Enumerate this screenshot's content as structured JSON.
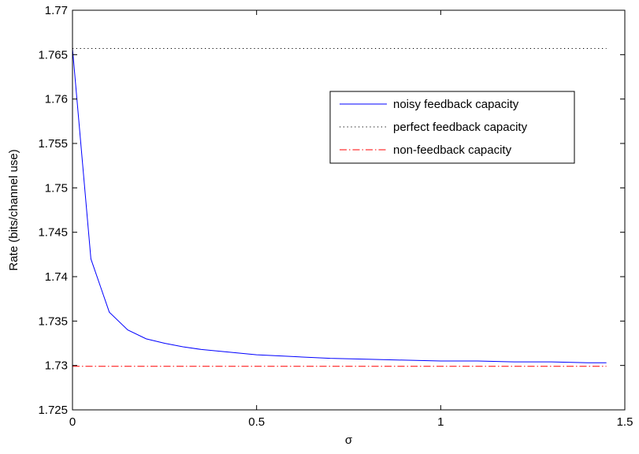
{
  "chart_data": {
    "type": "line",
    "title": "",
    "xlabel": "σ",
    "ylabel": "Rate (bits/channel use)",
    "xlim": [
      0,
      1.5
    ],
    "ylim": [
      1.725,
      1.77
    ],
    "x_ticks": [
      0,
      0.5,
      1,
      1.5
    ],
    "x_tick_labels": [
      "0",
      "0.5",
      "1",
      "1.5"
    ],
    "y_ticks": [
      1.725,
      1.73,
      1.735,
      1.74,
      1.745,
      1.75,
      1.755,
      1.76,
      1.765,
      1.77
    ],
    "y_tick_labels": [
      "1.725",
      "1.73",
      "1.735",
      "1.74",
      "1.745",
      "1.75",
      "1.755",
      "1.76",
      "1.765",
      "1.77"
    ],
    "grid": false,
    "legend_position": "top-right",
    "series": [
      {
        "name": "noisy feedback capacity",
        "color": "#0000ff",
        "style": "solid",
        "x": [
          0,
          0.05,
          0.1,
          0.15,
          0.2,
          0.25,
          0.3,
          0.35,
          0.4,
          0.45,
          0.5,
          0.6,
          0.7,
          0.8,
          0.9,
          1.0,
          1.1,
          1.2,
          1.3,
          1.4,
          1.45
        ],
        "y": [
          1.7657,
          1.742,
          1.736,
          1.734,
          1.733,
          1.7325,
          1.7321,
          1.7318,
          1.7316,
          1.7314,
          1.7312,
          1.731,
          1.7308,
          1.7307,
          1.7306,
          1.7305,
          1.7305,
          1.7304,
          1.7304,
          1.7303,
          1.7303
        ]
      },
      {
        "name": "perfect feedback capacity",
        "color": "#000000",
        "style": "dotted",
        "x": [
          0,
          1.45
        ],
        "y": [
          1.7657,
          1.7657
        ]
      },
      {
        "name": "non-feedback capacity",
        "color": "#ff0000",
        "style": "dashdot",
        "x": [
          0,
          1.45
        ],
        "y": [
          1.7299,
          1.7299
        ]
      }
    ]
  }
}
